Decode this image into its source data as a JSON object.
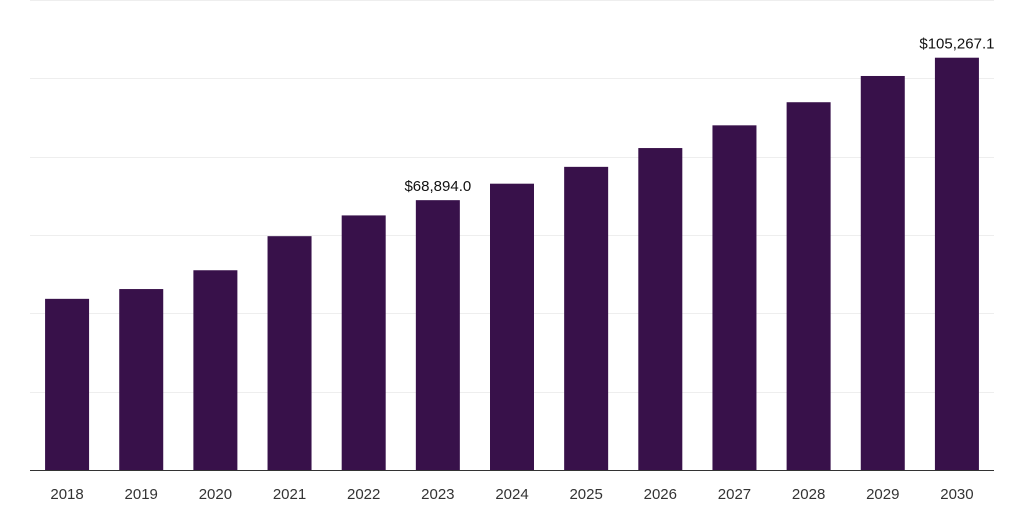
{
  "chart_data": {
    "type": "bar",
    "categories": [
      "2018",
      "2019",
      "2020",
      "2021",
      "2022",
      "2023",
      "2024",
      "2025",
      "2026",
      "2027",
      "2028",
      "2029",
      "2030"
    ],
    "values": [
      43700,
      46200,
      51000,
      59700,
      65000,
      68894.0,
      73100,
      77400,
      82200,
      88000,
      93900,
      100600,
      105267.1
    ],
    "data_labels": [
      {
        "category": "2023",
        "text": "$68,894.0"
      },
      {
        "category": "2030",
        "text": "$105,267.1"
      }
    ],
    "ylim": [
      0,
      120000
    ],
    "y_grid_step": 20000,
    "grid": true,
    "bar_color": "#38114a",
    "title": "",
    "xlabel": "",
    "ylabel": ""
  }
}
